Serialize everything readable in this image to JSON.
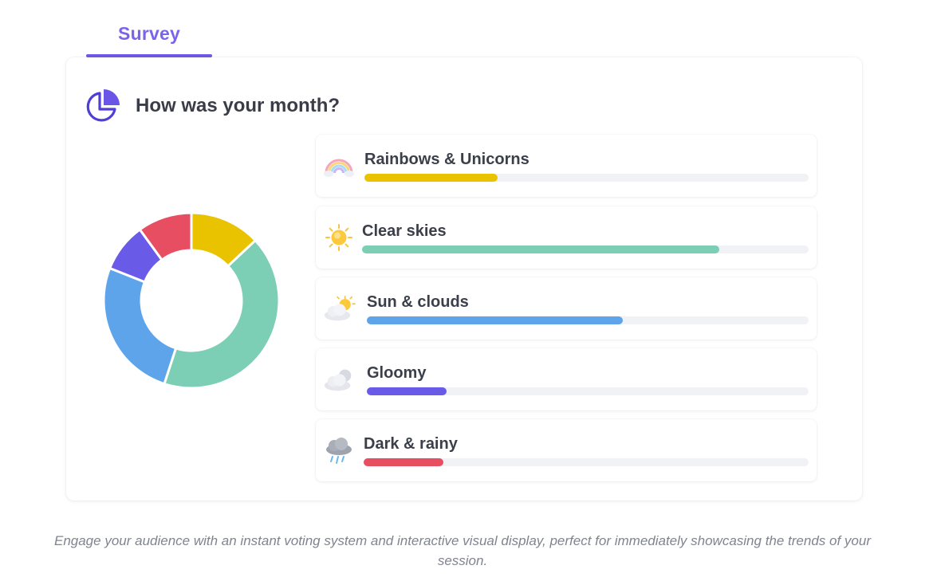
{
  "tab": {
    "label": "Survey"
  },
  "survey": {
    "question": "How was your month?",
    "options": [
      {
        "label": "Rainbows & Unicorns",
        "icon": "rainbow-icon",
        "color": "#e9c200",
        "fraction": 0.3
      },
      {
        "label": "Clear skies",
        "icon": "sun-icon",
        "color": "#7ccfb4",
        "fraction": 0.8
      },
      {
        "label": "Sun & clouds",
        "icon": "sun-behind-cloud-icon",
        "color": "#5ea4ea",
        "fraction": 0.58
      },
      {
        "label": "Gloomy",
        "icon": "cloud-icon",
        "color": "#6a5ae8",
        "fraction": 0.18
      },
      {
        "label": "Dark & rainy",
        "icon": "rain-cloud-icon",
        "color": "#e84e61",
        "fraction": 0.18
      }
    ]
  },
  "chart_data": {
    "type": "pie",
    "donut": true,
    "categories": [
      "Rainbows & Unicorns",
      "Clear skies",
      "Sun & clouds",
      "Gloomy",
      "Dark & rainy"
    ],
    "values": [
      13,
      42,
      26,
      9,
      10
    ],
    "colors": [
      "#e9c200",
      "#7ccfb4",
      "#5ea4ea",
      "#6a5ae8",
      "#e84e61"
    ]
  },
  "caption": "Engage your audience with an instant voting system and interactive visual display, perfect for immediately showcasing the trends of your session."
}
